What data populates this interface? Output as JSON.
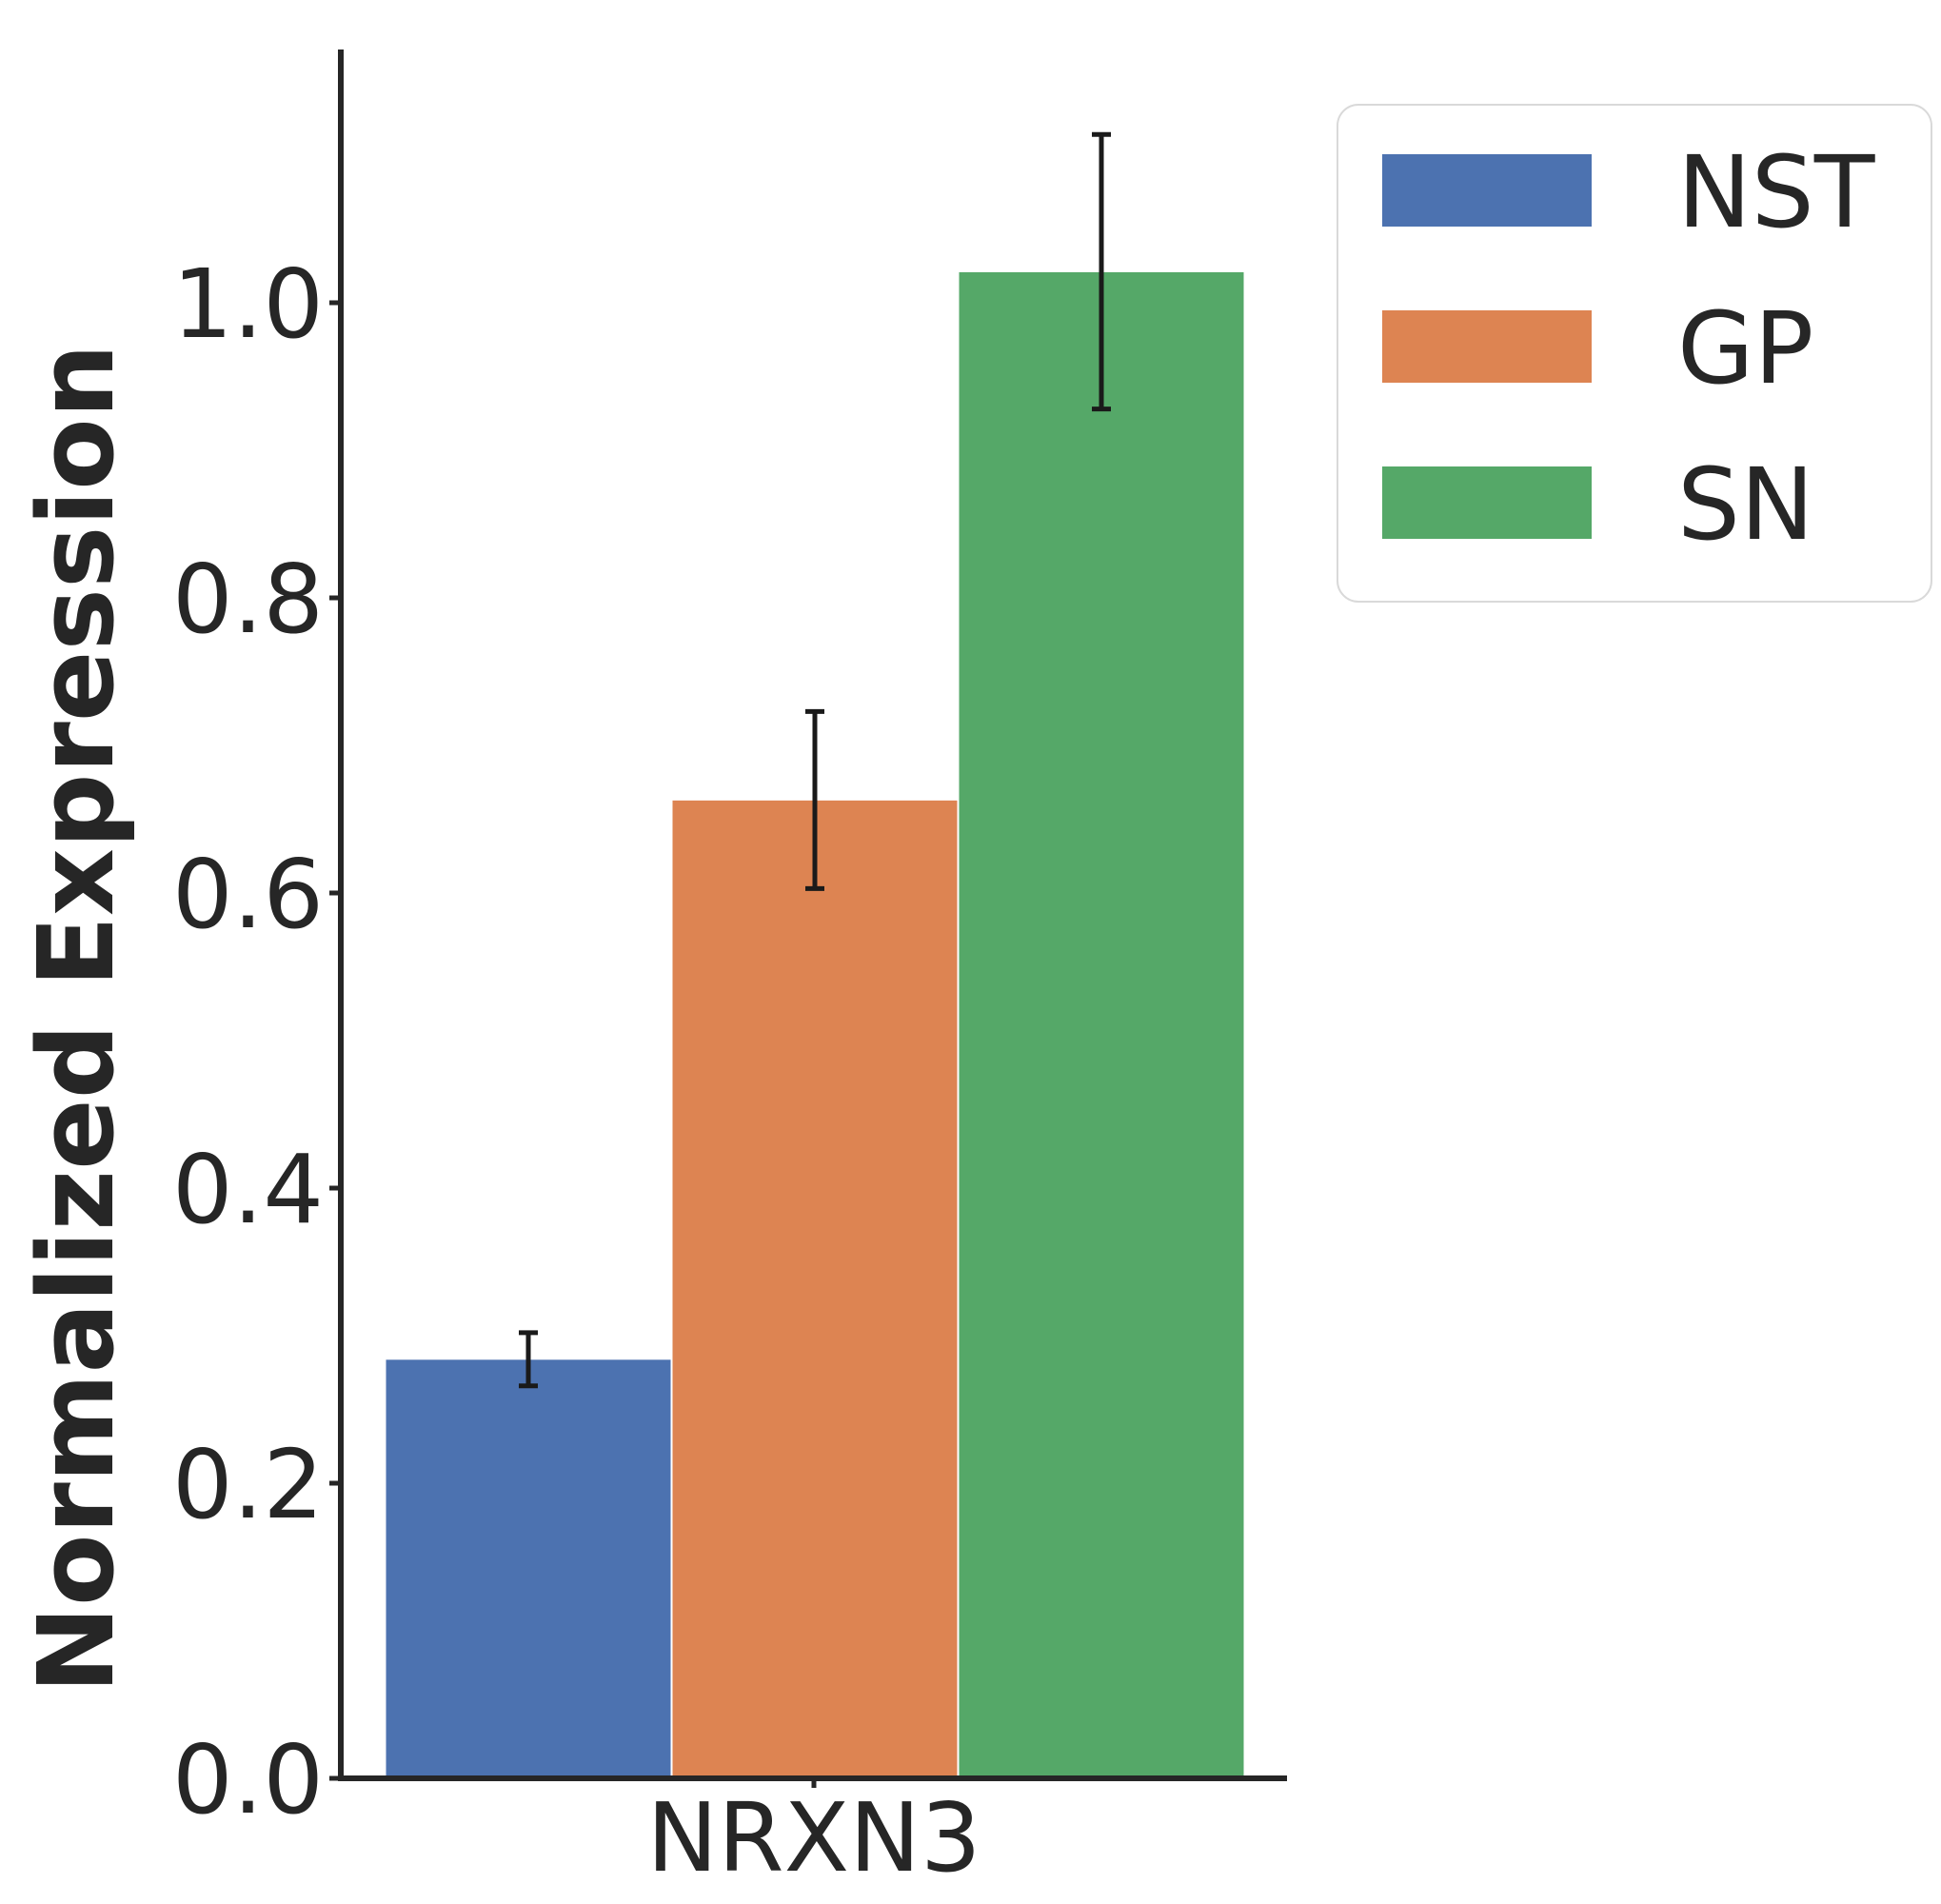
{
  "chart_data": {
    "type": "bar",
    "title": "",
    "xlabel": "",
    "ylabel": "Normalized Expression",
    "categories": [
      "NRXN3"
    ],
    "series": [
      {
        "name": "NST",
        "values": [
          0.284
        ],
        "error": [
          0.018
        ],
        "color": "#4c72b0"
      },
      {
        "name": "GP",
        "values": [
          0.663
        ],
        "error": [
          0.06
        ],
        "color": "#dd8452"
      },
      {
        "name": "SN",
        "values": [
          1.021
        ],
        "error": [
          0.093
        ],
        "color": "#55a868"
      }
    ],
    "ylim": [
      0,
      1.17
    ],
    "yticks": [
      "0.0",
      "0.2",
      "0.4",
      "0.6",
      "0.8",
      "1.0"
    ],
    "grid": false,
    "legend_position": "upper-right-outside",
    "axis_color": "#262626",
    "errorbar_color": "#1a1a1a"
  }
}
